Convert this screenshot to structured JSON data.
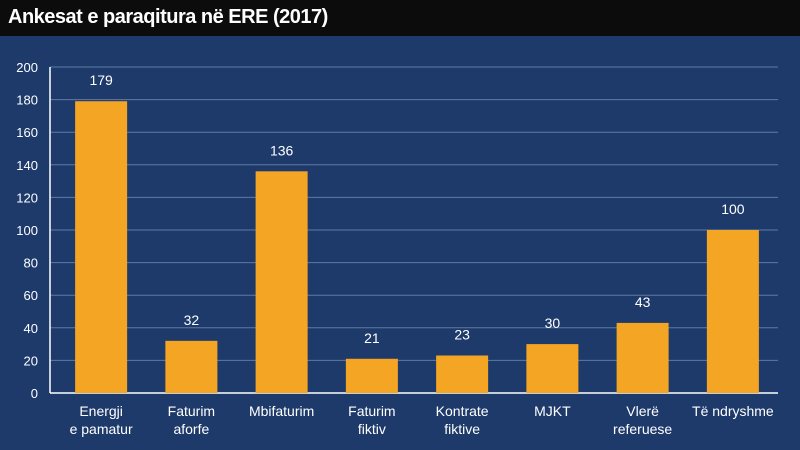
{
  "title": "Ankesat e paraqitura në ERE (2017)",
  "colors": {
    "background": "#1d3a6b",
    "title_bar": "#0c0c0c",
    "bar": "#f5a524",
    "grid": "#5f7aa0",
    "text": "#ffffff"
  },
  "chart_data": {
    "type": "bar",
    "title": "Ankesat e paraqitura në ERE (2017)",
    "categories": [
      [
        "Energji",
        "e pamatur"
      ],
      [
        "Faturim",
        "aforfe"
      ],
      [
        "Mbifaturim"
      ],
      [
        "Faturim",
        "fiktiv"
      ],
      [
        "Kontrate",
        "fiktive"
      ],
      [
        "MJKT"
      ],
      [
        "Vlerë",
        "referuese"
      ],
      [
        "Të ndryshme"
      ]
    ],
    "values": [
      179,
      32,
      136,
      21,
      23,
      30,
      43,
      100
    ],
    "data_labels": [
      "179",
      "32",
      "136",
      "21",
      "23",
      "30",
      "43",
      "100"
    ],
    "ylim": [
      0,
      200
    ],
    "yticks": [
      0,
      20,
      40,
      60,
      80,
      100,
      120,
      140,
      160,
      180,
      200
    ],
    "grid": true,
    "legend": "none"
  }
}
